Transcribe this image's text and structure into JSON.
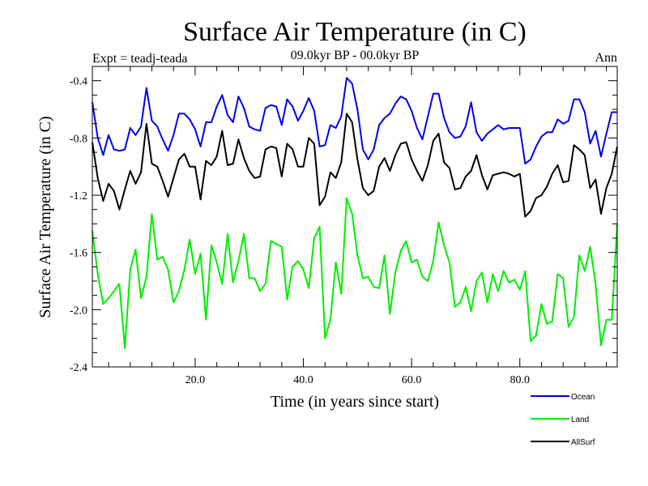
{
  "chart_data": {
    "type": "line",
    "title": "Surface Air Temperature (in C)",
    "subtitle_left": "Expt = teadj-teada",
    "subtitle_center": "09.0kyr BP - 00.0kyr BP",
    "subtitle_right": "Ann",
    "xlabel": "Time (in years since start)",
    "ylabel": "Surface Air Temperature (in C)",
    "xlim": [
      1,
      98
    ],
    "ylim": [
      -2.4,
      -0.3
    ],
    "xticks": [
      20,
      40,
      60,
      80
    ],
    "xtick_labels": [
      "20.0",
      "40.0",
      "60.0",
      "80.0"
    ],
    "yticks": [
      -0.4,
      -0.8,
      -1.2,
      -1.6,
      -2.0,
      -2.4
    ],
    "ytick_labels": [
      "-0.4",
      "-0.8",
      "-1.2",
      "-1.6",
      "-2.0",
      "-2.4"
    ],
    "x": [
      1,
      2,
      3,
      4,
      5,
      6,
      7,
      8,
      9,
      10,
      11,
      12,
      13,
      14,
      15,
      16,
      17,
      18,
      19,
      20,
      21,
      22,
      23,
      24,
      25,
      26,
      27,
      28,
      29,
      30,
      31,
      32,
      33,
      34,
      35,
      36,
      37,
      38,
      39,
      40,
      41,
      42,
      43,
      44,
      45,
      46,
      47,
      48,
      49,
      50,
      51,
      52,
      53,
      54,
      55,
      56,
      57,
      58,
      59,
      60,
      61,
      62,
      63,
      64,
      65,
      66,
      67,
      68,
      69,
      70,
      71,
      72,
      73,
      74,
      75,
      76,
      77,
      78,
      79,
      80,
      81,
      82,
      83,
      84,
      85,
      86,
      87,
      88,
      89,
      90,
      91,
      92,
      93,
      94,
      95,
      96,
      97,
      98
    ],
    "series": [
      {
        "name": "Ocean",
        "color": "#0000ee",
        "values": [
          -0.55,
          -0.8,
          -0.92,
          -0.78,
          -0.88,
          -0.89,
          -0.88,
          -0.73,
          -0.78,
          -0.72,
          -0.45,
          -0.68,
          -0.72,
          -0.81,
          -0.89,
          -0.78,
          -0.63,
          -0.63,
          -0.67,
          -0.74,
          -0.86,
          -0.69,
          -0.69,
          -0.58,
          -0.5,
          -0.64,
          -0.69,
          -0.51,
          -0.59,
          -0.72,
          -0.74,
          -0.75,
          -0.59,
          -0.57,
          -0.58,
          -0.71,
          -0.53,
          -0.58,
          -0.68,
          -0.61,
          -0.52,
          -0.61,
          -0.86,
          -0.85,
          -0.71,
          -0.73,
          -0.65,
          -0.38,
          -0.42,
          -0.6,
          -0.88,
          -0.95,
          -0.88,
          -0.71,
          -0.66,
          -0.63,
          -0.56,
          -0.51,
          -0.53,
          -0.61,
          -0.73,
          -0.81,
          -0.65,
          -0.49,
          -0.49,
          -0.66,
          -0.76,
          -0.8,
          -0.79,
          -0.72,
          -0.55,
          -0.76,
          -0.82,
          -0.77,
          -0.74,
          -0.71,
          -0.74,
          -0.73,
          -0.73,
          -0.73,
          -0.98,
          -0.95,
          -0.86,
          -0.79,
          -0.76,
          -0.76,
          -0.67,
          -0.7,
          -0.68,
          -0.53,
          -0.53,
          -0.62,
          -0.84,
          -0.75,
          -0.93,
          -0.77,
          -0.62,
          -0.62
        ]
      },
      {
        "name": "Land",
        "color": "#00ee00",
        "values": [
          -1.45,
          -1.75,
          -1.96,
          -1.92,
          -1.87,
          -1.82,
          -2.27,
          -1.72,
          -1.58,
          -1.92,
          -1.77,
          -1.33,
          -1.65,
          -1.63,
          -1.72,
          -1.95,
          -1.87,
          -1.72,
          -1.51,
          -1.75,
          -1.61,
          -2.07,
          -1.55,
          -1.67,
          -1.82,
          -1.47,
          -1.81,
          -1.66,
          -1.47,
          -1.78,
          -1.78,
          -1.87,
          -1.82,
          -1.52,
          -1.54,
          -1.56,
          -1.93,
          -1.7,
          -1.66,
          -1.72,
          -1.85,
          -1.5,
          -1.42,
          -2.2,
          -2.07,
          -1.67,
          -1.89,
          -1.22,
          -1.33,
          -1.62,
          -1.78,
          -1.77,
          -1.84,
          -1.85,
          -1.62,
          -2.03,
          -1.74,
          -1.59,
          -1.52,
          -1.67,
          -1.65,
          -1.77,
          -1.8,
          -1.66,
          -1.39,
          -1.55,
          -1.67,
          -1.98,
          -1.95,
          -1.84,
          -2.01,
          -1.8,
          -1.74,
          -1.95,
          -1.75,
          -1.87,
          -1.73,
          -1.81,
          -1.79,
          -1.86,
          -1.73,
          -2.22,
          -2.18,
          -1.96,
          -2.1,
          -2.08,
          -1.75,
          -1.78,
          -2.12,
          -2.05,
          -1.62,
          -1.73,
          -1.56,
          -1.82,
          -2.25,
          -2.07,
          -2.07,
          -1.4
        ]
      },
      {
        "name": "AllSurf",
        "color": "#000000",
        "values": [
          -0.83,
          -1.08,
          -1.24,
          -1.12,
          -1.17,
          -1.3,
          -1.16,
          -1.03,
          -1.12,
          -1.04,
          -0.7,
          -0.98,
          -1.0,
          -1.1,
          -1.21,
          -1.08,
          -0.95,
          -0.91,
          -1.0,
          -1.0,
          -1.23,
          -0.96,
          -0.99,
          -0.93,
          -0.75,
          -0.99,
          -0.98,
          -0.81,
          -0.94,
          -1.03,
          -1.08,
          -1.07,
          -0.88,
          -0.86,
          -0.87,
          -1.07,
          -0.84,
          -0.88,
          -1.0,
          -1.0,
          -0.8,
          -0.84,
          -1.27,
          -1.21,
          -1.04,
          -1.08,
          -0.97,
          -0.63,
          -0.69,
          -0.95,
          -1.15,
          -1.2,
          -1.17,
          -1.0,
          -0.94,
          -1.03,
          -0.92,
          -0.84,
          -0.83,
          -0.95,
          -1.03,
          -1.1,
          -0.99,
          -0.82,
          -0.77,
          -0.97,
          -1.01,
          -1.16,
          -1.15,
          -1.07,
          -1.03,
          -0.92,
          -1.06,
          -1.16,
          -1.06,
          -1.05,
          -1.04,
          -1.05,
          -1.07,
          -1.05,
          -1.35,
          -1.31,
          -1.22,
          -1.2,
          -1.14,
          -1.05,
          -0.99,
          -1.11,
          -1.1,
          -0.85,
          -0.88,
          -0.92,
          -1.15,
          -1.09,
          -1.33,
          -1.15,
          -1.05,
          -0.86
        ]
      }
    ],
    "legend": {
      "placement": "bottom-right",
      "entries": [
        "Ocean",
        "Land",
        "AllSurf"
      ]
    }
  }
}
